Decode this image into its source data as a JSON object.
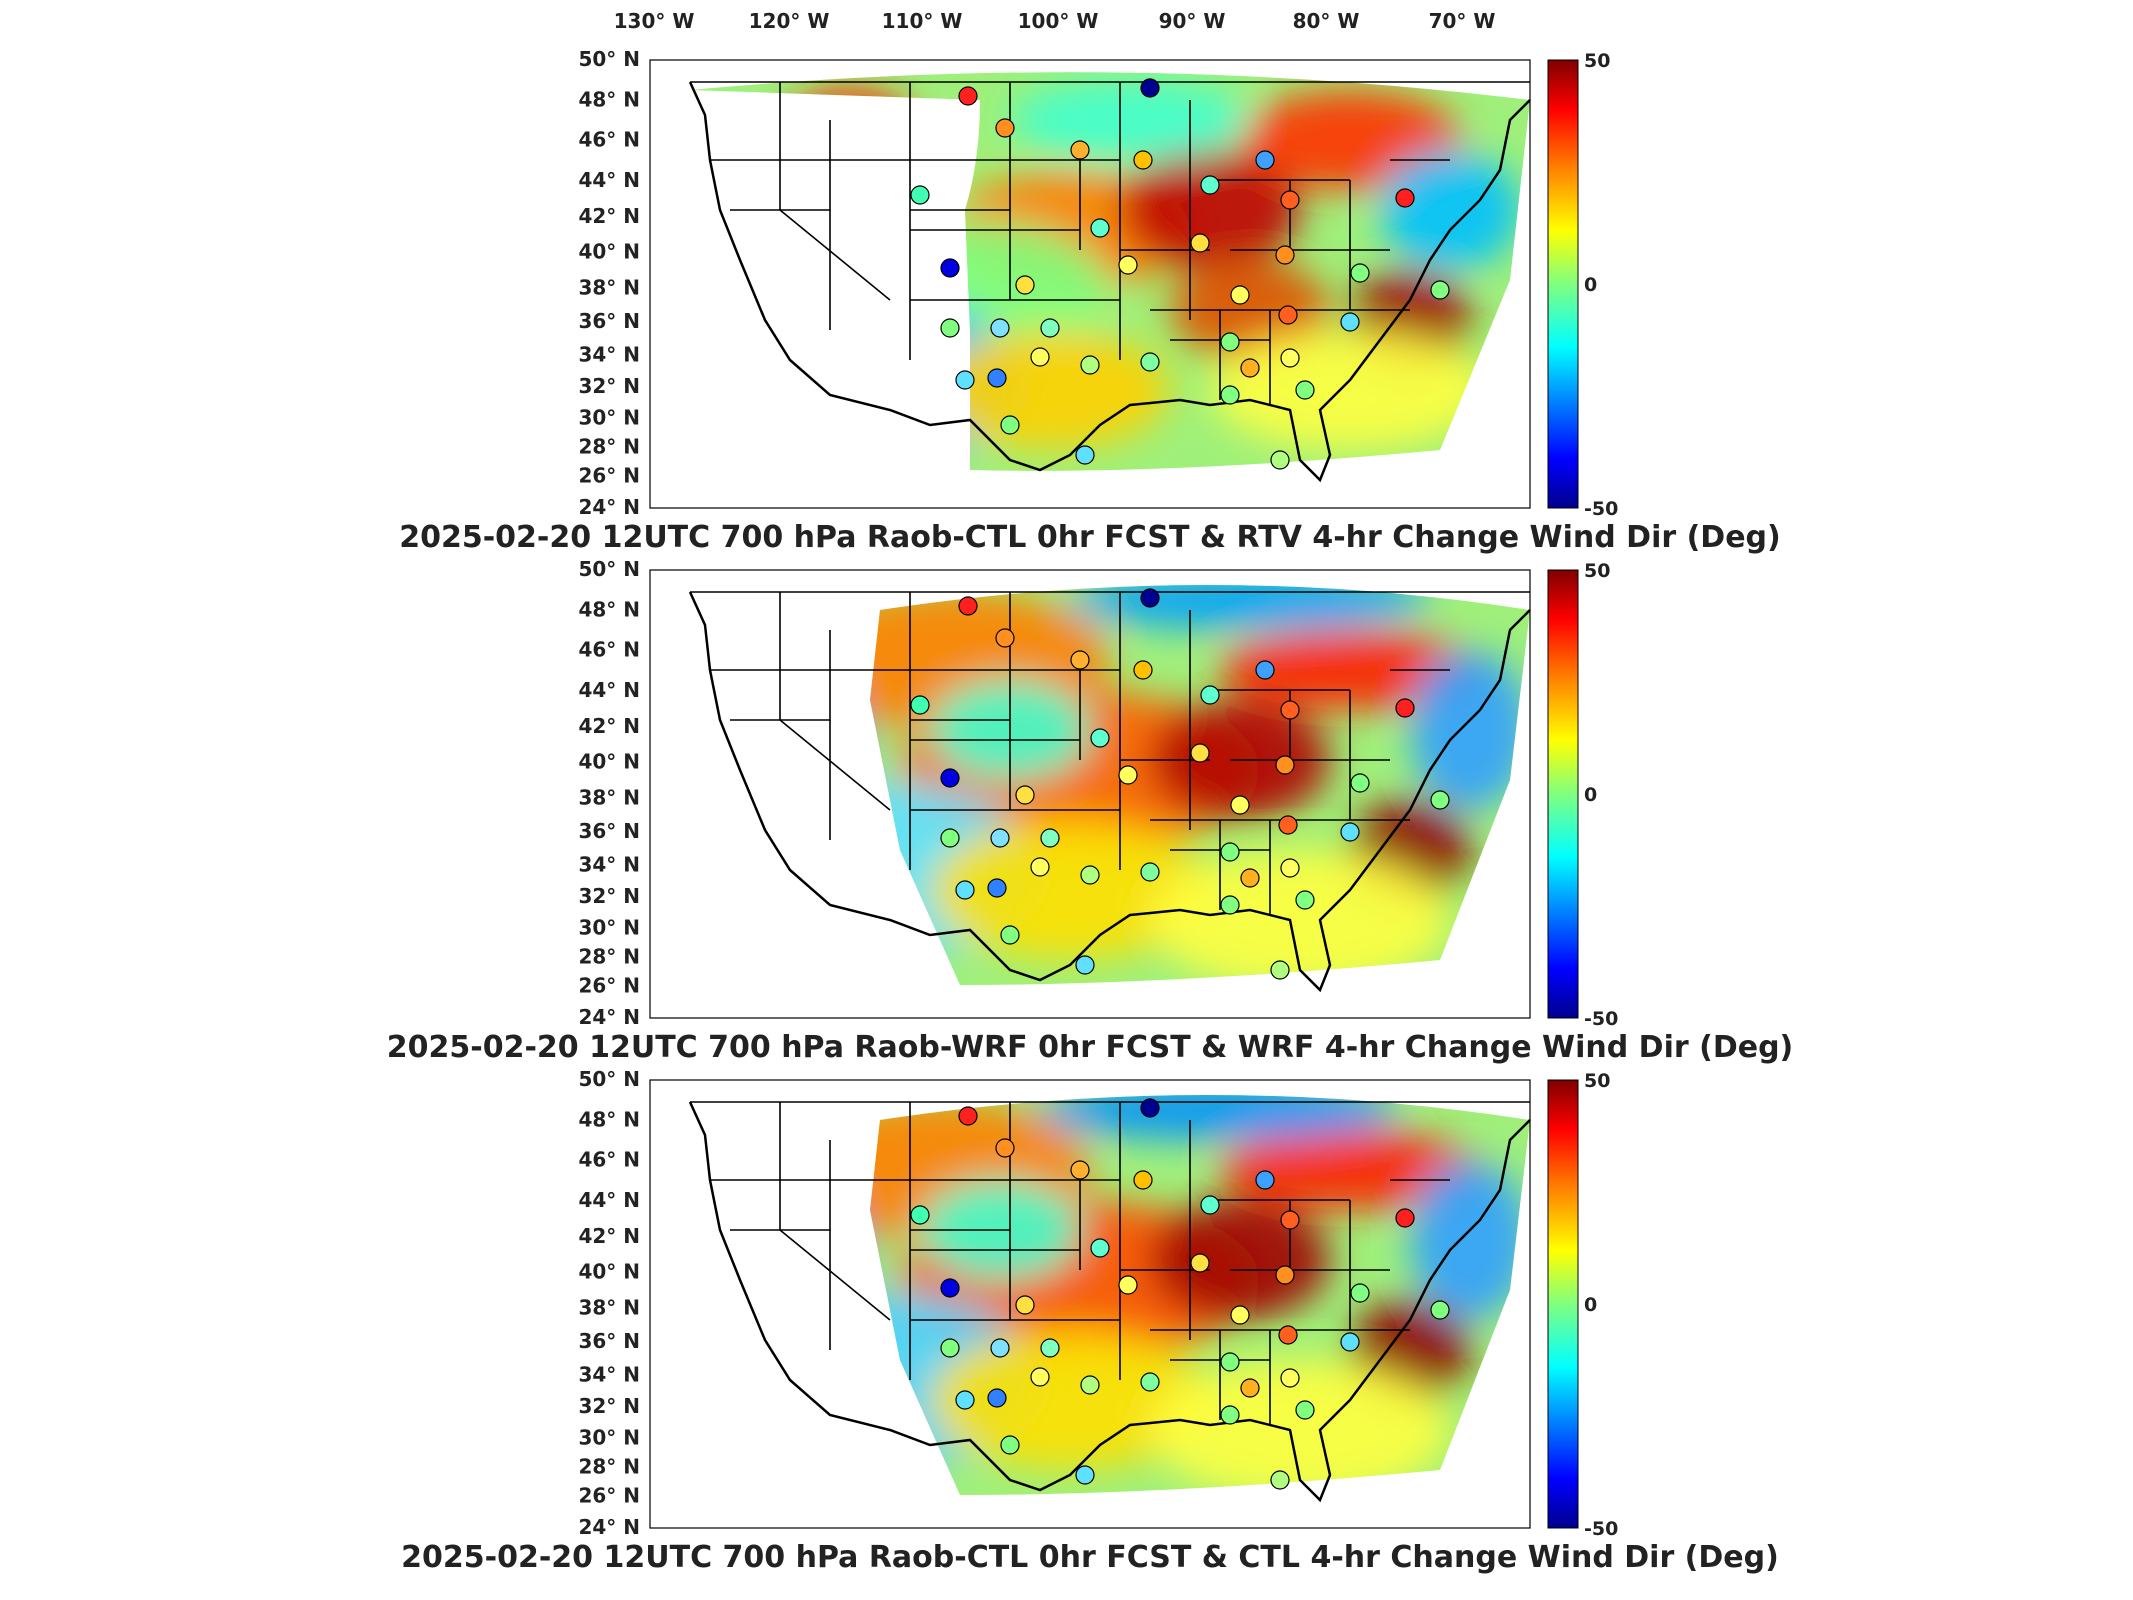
{
  "lon_labels": [
    "130",
    "120",
    "110",
    "100",
    "90",
    "80",
    "70"
  ],
  "lon_suffix": "W",
  "lat_labels": [
    "50",
    "48",
    "46",
    "44",
    "42",
    "40",
    "38",
    "36",
    "34",
    "32",
    "30",
    "28",
    "26",
    "24"
  ],
  "lat_suffix": "N",
  "degree_symbol": "°",
  "colorbar": {
    "max_label": "50",
    "mid_label": "0",
    "min_label": "-50",
    "range": [
      -50,
      50
    ]
  },
  "panels": [
    {
      "title": "2025-02-20 12UTC 700 hPa Raob-CTL 0hr FCST & RTV 4-hr Change Wind Dir (Deg)"
    },
    {
      "title": "2025-02-20 12UTC 700 hPa Raob-WRF 0hr FCST & WRF 4-hr Change Wind Dir (Deg)"
    },
    {
      "title": "2025-02-20 12UTC 700 hPa Raob-CTL 0hr FCST & CTL 4-hr Change Wind Dir (Deg)"
    }
  ],
  "colors": {
    "jet": [
      "#00008f",
      "#0000ff",
      "#0080ff",
      "#00ffff",
      "#80ff80",
      "#ffff00",
      "#ff8000",
      "#ff0000",
      "#800000"
    ]
  }
}
